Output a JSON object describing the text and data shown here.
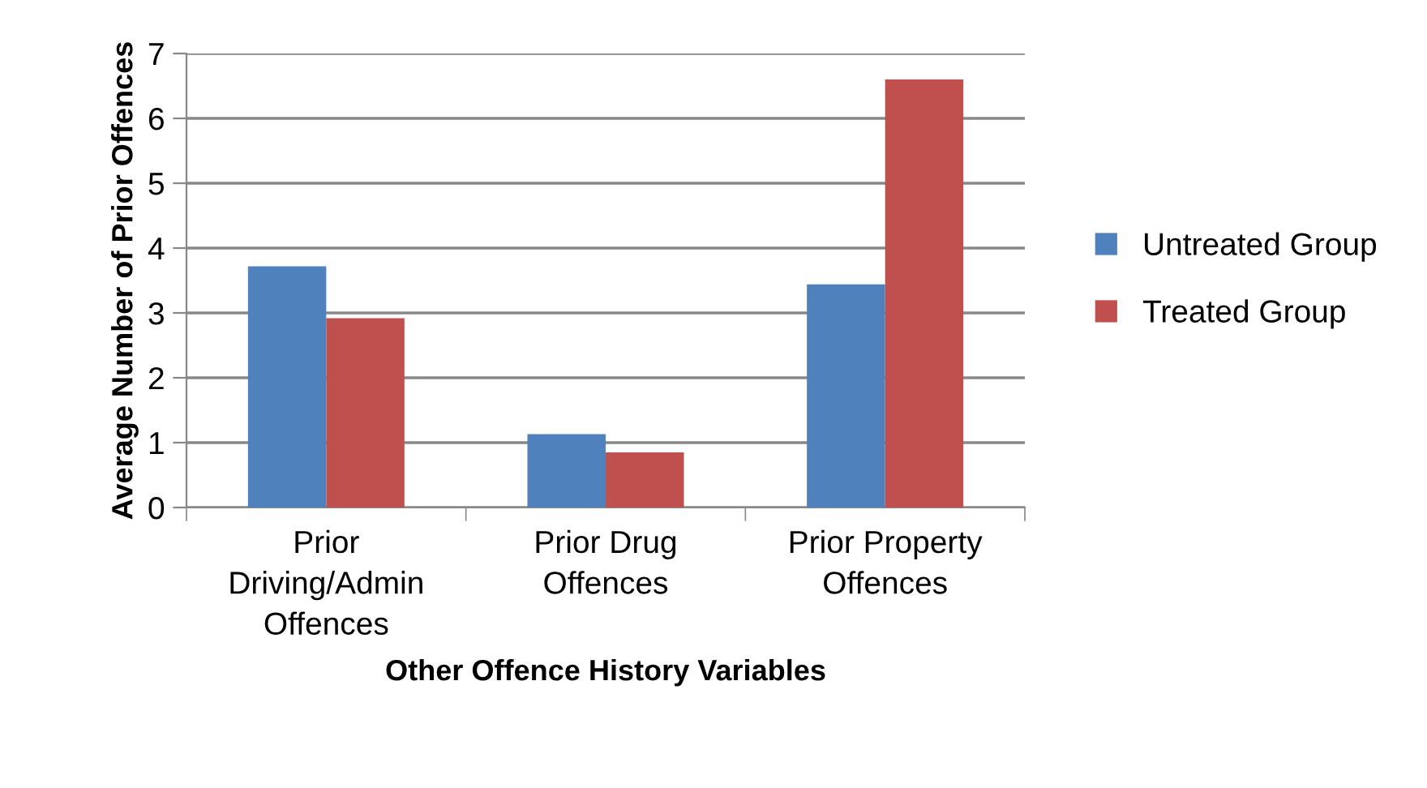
{
  "chart_data": {
    "type": "bar",
    "xlabel": "Other Offence History Variables",
    "ylabel": "Average Number of Prior Offences",
    "categories": [
      "Prior\nDriving/Admin\nOffences",
      "Prior Drug\nOffences",
      "Prior Property\nOffences"
    ],
    "series": [
      {
        "name": "Untreated Group",
        "color": "#4f81bd",
        "values": [
          3.72,
          1.13,
          3.44
        ]
      },
      {
        "name": "Treated Group",
        "color": "#c0504d",
        "values": [
          2.92,
          0.85,
          6.6
        ]
      }
    ],
    "ylim": [
      0,
      7
    ],
    "yticks": [
      0,
      1,
      2,
      3,
      4,
      5,
      6,
      7
    ],
    "grid": "y",
    "legend": "right"
  }
}
